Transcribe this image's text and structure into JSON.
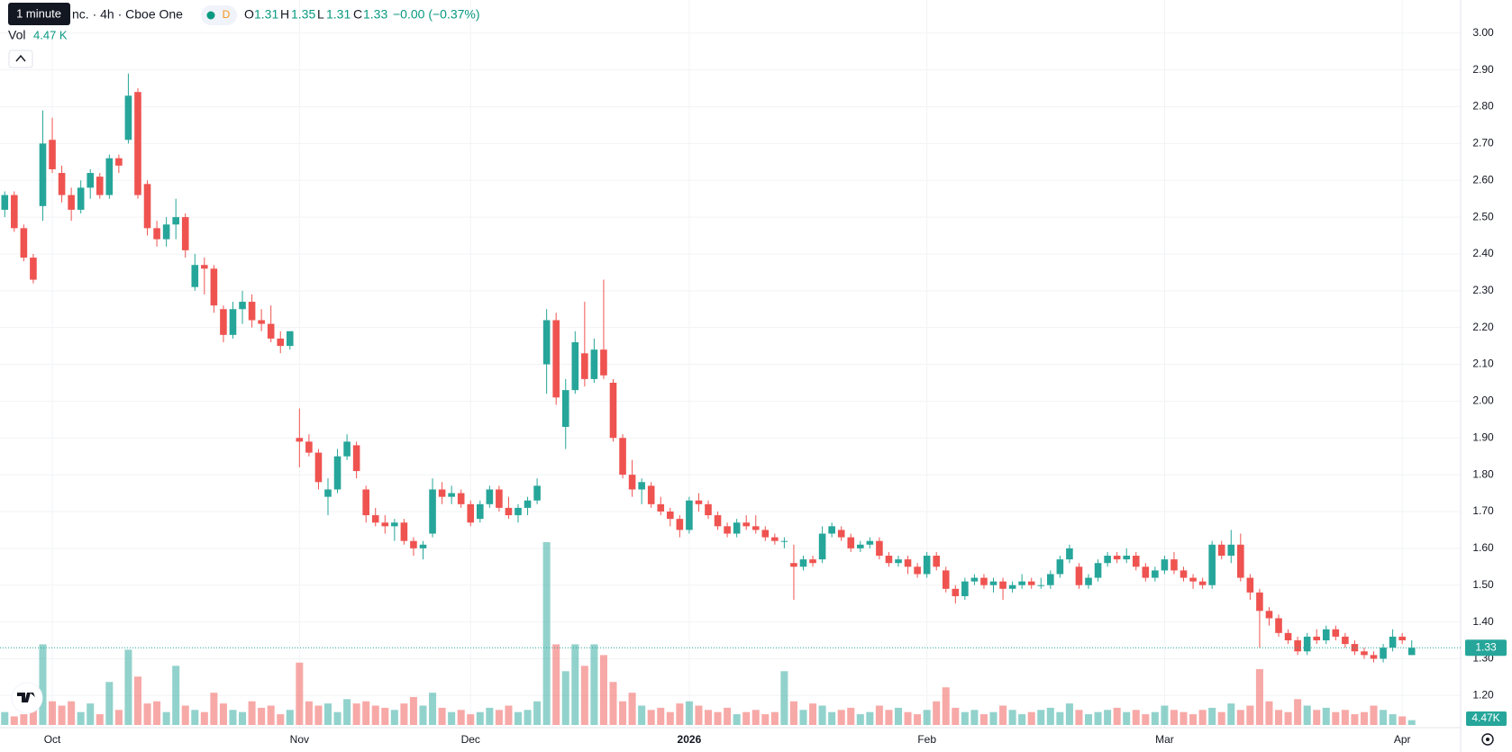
{
  "header": {
    "tooltip": "1 minute",
    "title": "nc. · 4h · Cboe One",
    "interval_badge": "D",
    "o_label": "O",
    "h_label": "H",
    "l_label": "L",
    "c_label": "C",
    "change": "−0.00 (−0.37%)",
    "vol_label": "Vol",
    "vol_value": "4.47 K"
  },
  "chart_data": {
    "type": "candlestick",
    "up_color": "#26a69a",
    "down_color": "#ef5350",
    "grid": true,
    "ylim": [
      1.12,
      3.09
    ],
    "yticks": [
      {
        "value": 1.2,
        "label": "1.20"
      },
      {
        "value": 1.3,
        "label": "1.30"
      },
      {
        "value": 1.4,
        "label": "1.40"
      },
      {
        "value": 1.5,
        "label": "1.50"
      },
      {
        "value": 1.6,
        "label": "1.60"
      },
      {
        "value": 1.7,
        "label": "1.70"
      },
      {
        "value": 1.8,
        "label": "1.80"
      },
      {
        "value": 1.9,
        "label": "1.90"
      },
      {
        "value": 2.0,
        "label": "2.00"
      },
      {
        "value": 2.1,
        "label": "2.10"
      },
      {
        "value": 2.2,
        "label": "2.20"
      },
      {
        "value": 2.3,
        "label": "2.30"
      },
      {
        "value": 2.4,
        "label": "2.40"
      },
      {
        "value": 2.5,
        "label": "2.50"
      },
      {
        "value": 2.6,
        "label": "2.60"
      },
      {
        "value": 2.7,
        "label": "2.70"
      },
      {
        "value": 2.8,
        "label": "2.80"
      },
      {
        "value": 2.9,
        "label": "2.90"
      },
      {
        "value": 3.0,
        "label": "3.00"
      }
    ],
    "categories": [
      null,
      null,
      null,
      null,
      null,
      "Oct",
      null,
      null,
      null,
      null,
      null,
      null,
      null,
      null,
      null,
      null,
      null,
      null,
      null,
      null,
      null,
      null,
      null,
      null,
      null,
      null,
      null,
      null,
      null,
      null,
      null,
      "Nov",
      null,
      null,
      null,
      null,
      null,
      null,
      null,
      null,
      null,
      null,
      null,
      null,
      null,
      null,
      null,
      null,
      null,
      "Dec",
      null,
      null,
      null,
      null,
      null,
      null,
      null,
      null,
      null,
      null,
      null,
      null,
      null,
      null,
      null,
      null,
      null,
      null,
      null,
      null,
      null,
      null,
      "2026",
      null,
      null,
      null,
      null,
      null,
      null,
      null,
      null,
      null,
      null,
      null,
      null,
      null,
      null,
      null,
      null,
      null,
      null,
      null,
      null,
      null,
      null,
      null,
      null,
      "Feb",
      null,
      null,
      null,
      null,
      null,
      null,
      null,
      null,
      null,
      null,
      null,
      null,
      null,
      null,
      null,
      null,
      null,
      null,
      null,
      null,
      null,
      null,
      null,
      null,
      "Mar",
      null,
      null,
      null,
      null,
      null,
      null,
      null,
      null,
      null,
      null,
      null,
      null,
      null,
      null,
      null,
      null,
      null,
      null,
      null,
      null,
      null,
      null,
      null,
      null,
      "Apr",
      null
    ],
    "candles": [
      [
        2.52,
        2.57,
        2.5,
        2.56
      ],
      [
        2.56,
        2.57,
        2.46,
        2.47
      ],
      [
        2.47,
        2.48,
        2.38,
        2.39
      ],
      [
        2.39,
        2.4,
        2.32,
        2.33
      ],
      [
        2.53,
        2.79,
        2.49,
        2.7
      ],
      [
        2.71,
        2.77,
        2.62,
        2.63
      ],
      [
        2.62,
        2.64,
        2.54,
        2.56
      ],
      [
        2.56,
        2.58,
        2.49,
        2.52
      ],
      [
        2.52,
        2.6,
        2.51,
        2.58
      ],
      [
        2.58,
        2.63,
        2.55,
        2.62
      ],
      [
        2.61,
        2.62,
        2.55,
        2.56
      ],
      [
        2.56,
        2.67,
        2.55,
        2.66
      ],
      [
        2.66,
        2.67,
        2.62,
        2.64
      ],
      [
        2.71,
        2.89,
        2.7,
        2.83
      ],
      [
        2.84,
        2.85,
        2.55,
        2.56
      ],
      [
        2.59,
        2.6,
        2.45,
        2.47
      ],
      [
        2.47,
        2.49,
        2.42,
        2.44
      ],
      [
        2.44,
        2.5,
        2.42,
        2.48
      ],
      [
        2.48,
        2.55,
        2.44,
        2.5
      ],
      [
        2.5,
        2.51,
        2.39,
        2.41
      ],
      [
        2.31,
        2.4,
        2.3,
        2.37
      ],
      [
        2.37,
        2.39,
        2.29,
        2.36
      ],
      [
        2.36,
        2.37,
        2.24,
        2.26
      ],
      [
        2.25,
        2.26,
        2.16,
        2.18
      ],
      [
        2.18,
        2.27,
        2.17,
        2.25
      ],
      [
        2.25,
        2.3,
        2.21,
        2.27
      ],
      [
        2.27,
        2.29,
        2.2,
        2.22
      ],
      [
        2.22,
        2.25,
        2.19,
        2.21
      ],
      [
        2.21,
        2.26,
        2.16,
        2.17
      ],
      [
        2.17,
        2.19,
        2.13,
        2.15
      ],
      [
        2.15,
        2.19,
        2.14,
        2.19
      ],
      [
        1.9,
        1.98,
        1.82,
        1.89
      ],
      [
        1.89,
        1.91,
        1.85,
        1.86
      ],
      [
        1.86,
        1.87,
        1.76,
        1.78
      ],
      [
        1.74,
        1.79,
        1.69,
        1.76
      ],
      [
        1.76,
        1.87,
        1.75,
        1.85
      ],
      [
        1.85,
        1.91,
        1.84,
        1.89
      ],
      [
        1.88,
        1.89,
        1.79,
        1.81
      ],
      [
        1.76,
        1.77,
        1.67,
        1.69
      ],
      [
        1.69,
        1.71,
        1.66,
        1.67
      ],
      [
        1.67,
        1.69,
        1.64,
        1.66
      ],
      [
        1.66,
        1.68,
        1.62,
        1.67
      ],
      [
        1.67,
        1.68,
        1.61,
        1.62
      ],
      [
        1.62,
        1.63,
        1.58,
        1.6
      ],
      [
        1.6,
        1.62,
        1.57,
        1.61
      ],
      [
        1.64,
        1.79,
        1.63,
        1.76
      ],
      [
        1.76,
        1.78,
        1.72,
        1.74
      ],
      [
        1.74,
        1.77,
        1.72,
        1.75
      ],
      [
        1.75,
        1.76,
        1.71,
        1.72
      ],
      [
        1.72,
        1.73,
        1.66,
        1.67
      ],
      [
        1.68,
        1.73,
        1.67,
        1.72
      ],
      [
        1.72,
        1.77,
        1.71,
        1.76
      ],
      [
        1.76,
        1.77,
        1.7,
        1.71
      ],
      [
        1.71,
        1.74,
        1.68,
        1.69
      ],
      [
        1.69,
        1.72,
        1.67,
        1.71
      ],
      [
        1.71,
        1.74,
        1.69,
        1.73
      ],
      [
        1.73,
        1.79,
        1.72,
        1.77
      ],
      [
        2.1,
        2.25,
        2.02,
        2.22
      ],
      [
        2.22,
        2.24,
        1.99,
        2.01
      ],
      [
        1.93,
        2.06,
        1.87,
        2.03
      ],
      [
        2.03,
        2.19,
        2.02,
        2.16
      ],
      [
        2.13,
        2.27,
        2.04,
        2.06
      ],
      [
        2.06,
        2.17,
        2.05,
        2.14
      ],
      [
        2.14,
        2.33,
        2.06,
        2.07
      ],
      [
        2.05,
        2.06,
        1.89,
        1.9
      ],
      [
        1.9,
        1.91,
        1.79,
        1.8
      ],
      [
        1.8,
        1.84,
        1.74,
        1.76
      ],
      [
        1.76,
        1.79,
        1.72,
        1.78
      ],
      [
        1.77,
        1.78,
        1.71,
        1.72
      ],
      [
        1.72,
        1.74,
        1.69,
        1.7
      ],
      [
        1.7,
        1.71,
        1.66,
        1.68
      ],
      [
        1.68,
        1.69,
        1.63,
        1.65
      ],
      [
        1.65,
        1.74,
        1.64,
        1.73
      ],
      [
        1.73,
        1.75,
        1.7,
        1.72
      ],
      [
        1.72,
        1.73,
        1.68,
        1.69
      ],
      [
        1.69,
        1.7,
        1.65,
        1.66
      ],
      [
        1.66,
        1.67,
        1.63,
        1.64
      ],
      [
        1.64,
        1.68,
        1.63,
        1.67
      ],
      [
        1.67,
        1.69,
        1.65,
        1.66
      ],
      [
        1.66,
        1.69,
        1.64,
        1.65
      ],
      [
        1.65,
        1.66,
        1.62,
        1.63
      ],
      [
        1.63,
        1.64,
        1.61,
        1.62
      ],
      [
        1.62,
        1.63,
        1.6,
        1.62
      ],
      [
        1.56,
        1.61,
        1.46,
        1.55
      ],
      [
        1.55,
        1.58,
        1.54,
        1.57
      ],
      [
        1.57,
        1.58,
        1.55,
        1.56
      ],
      [
        1.57,
        1.66,
        1.56,
        1.64
      ],
      [
        1.64,
        1.67,
        1.63,
        1.66
      ],
      [
        1.65,
        1.66,
        1.62,
        1.63
      ],
      [
        1.63,
        1.64,
        1.59,
        1.6
      ],
      [
        1.6,
        1.62,
        1.59,
        1.61
      ],
      [
        1.61,
        1.63,
        1.6,
        1.62
      ],
      [
        1.62,
        1.63,
        1.57,
        1.58
      ],
      [
        1.58,
        1.59,
        1.55,
        1.56
      ],
      [
        1.56,
        1.58,
        1.55,
        1.57
      ],
      [
        1.57,
        1.58,
        1.53,
        1.55
      ],
      [
        1.55,
        1.56,
        1.52,
        1.53
      ],
      [
        1.53,
        1.59,
        1.52,
        1.58
      ],
      [
        1.58,
        1.59,
        1.54,
        1.55
      ],
      [
        1.54,
        1.55,
        1.48,
        1.49
      ],
      [
        1.49,
        1.5,
        1.45,
        1.47
      ],
      [
        1.47,
        1.52,
        1.46,
        1.51
      ],
      [
        1.51,
        1.53,
        1.5,
        1.52
      ],
      [
        1.52,
        1.53,
        1.49,
        1.5
      ],
      [
        1.5,
        1.52,
        1.48,
        1.51
      ],
      [
        1.51,
        1.52,
        1.46,
        1.49
      ],
      [
        1.49,
        1.51,
        1.48,
        1.5
      ],
      [
        1.5,
        1.53,
        1.49,
        1.51
      ],
      [
        1.51,
        1.52,
        1.49,
        1.5
      ],
      [
        1.5,
        1.52,
        1.49,
        1.5
      ],
      [
        1.5,
        1.54,
        1.49,
        1.53
      ],
      [
        1.53,
        1.58,
        1.52,
        1.57
      ],
      [
        1.57,
        1.61,
        1.56,
        1.6
      ],
      [
        1.55,
        1.56,
        1.49,
        1.5
      ],
      [
        1.5,
        1.53,
        1.49,
        1.52
      ],
      [
        1.52,
        1.57,
        1.51,
        1.56
      ],
      [
        1.56,
        1.59,
        1.55,
        1.58
      ],
      [
        1.58,
        1.59,
        1.56,
        1.57
      ],
      [
        1.57,
        1.6,
        1.56,
        1.58
      ],
      [
        1.58,
        1.59,
        1.54,
        1.55
      ],
      [
        1.55,
        1.56,
        1.51,
        1.52
      ],
      [
        1.52,
        1.55,
        1.51,
        1.54
      ],
      [
        1.54,
        1.58,
        1.53,
        1.57
      ],
      [
        1.57,
        1.59,
        1.53,
        1.54
      ],
      [
        1.54,
        1.55,
        1.51,
        1.52
      ],
      [
        1.52,
        1.53,
        1.49,
        1.51
      ],
      [
        1.51,
        1.52,
        1.49,
        1.5
      ],
      [
        1.5,
        1.62,
        1.49,
        1.61
      ],
      [
        1.61,
        1.62,
        1.57,
        1.58
      ],
      [
        1.58,
        1.65,
        1.56,
        1.61
      ],
      [
        1.61,
        1.64,
        1.51,
        1.52
      ],
      [
        1.52,
        1.53,
        1.46,
        1.48
      ],
      [
        1.48,
        1.49,
        1.33,
        1.43
      ],
      [
        1.43,
        1.44,
        1.39,
        1.41
      ],
      [
        1.41,
        1.42,
        1.36,
        1.37
      ],
      [
        1.37,
        1.38,
        1.34,
        1.35
      ],
      [
        1.35,
        1.36,
        1.31,
        1.32
      ],
      [
        1.32,
        1.37,
        1.31,
        1.36
      ],
      [
        1.36,
        1.38,
        1.34,
        1.35
      ],
      [
        1.35,
        1.39,
        1.34,
        1.38
      ],
      [
        1.38,
        1.39,
        1.35,
        1.36
      ],
      [
        1.36,
        1.37,
        1.33,
        1.34
      ],
      [
        1.34,
        1.35,
        1.31,
        1.32
      ],
      [
        1.32,
        1.33,
        1.3,
        1.31
      ],
      [
        1.31,
        1.32,
        1.29,
        1.3
      ],
      [
        1.3,
        1.34,
        1.29,
        1.33
      ],
      [
        1.33,
        1.38,
        1.32,
        1.36
      ],
      [
        1.36,
        1.37,
        1.34,
        1.35
      ],
      [
        1.31,
        1.35,
        1.31,
        1.33
      ]
    ],
    "volume": [
      12,
      8,
      10,
      14,
      75,
      22,
      18,
      22,
      12,
      20,
      10,
      40,
      14,
      70,
      45,
      20,
      22,
      12,
      55,
      18,
      14,
      12,
      30,
      20,
      14,
      12,
      22,
      16,
      18,
      10,
      14,
      58,
      22,
      18,
      20,
      12,
      24,
      20,
      22,
      18,
      16,
      14,
      20,
      26,
      18,
      30,
      16,
      12,
      14,
      10,
      12,
      16,
      14,
      18,
      12,
      14,
      22,
      170,
      75,
      50,
      75,
      55,
      75,
      65,
      40,
      22,
      30,
      18,
      14,
      16,
      12,
      20,
      22,
      18,
      14,
      12,
      16,
      10,
      12,
      14,
      10,
      12,
      50,
      22,
      14,
      20,
      18,
      12,
      14,
      16,
      10,
      12,
      18,
      14,
      16,
      12,
      10,
      14,
      22,
      35,
      16,
      12,
      14,
      10,
      12,
      18,
      14,
      10,
      12,
      14,
      16,
      12,
      20,
      14,
      10,
      12,
      14,
      16,
      12,
      14,
      10,
      12,
      18,
      14,
      12,
      10,
      14,
      16,
      12,
      20,
      14,
      18,
      52,
      22,
      14,
      12,
      24,
      18,
      14,
      16,
      12,
      14,
      10,
      12,
      18,
      14,
      10,
      8,
      4.47
    ],
    "volume_axis_label": "4.47K"
  }
}
